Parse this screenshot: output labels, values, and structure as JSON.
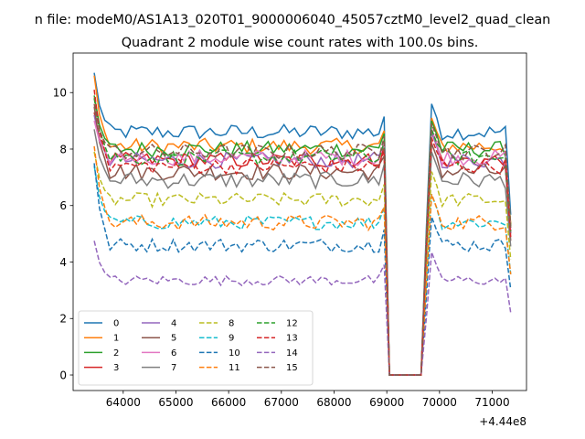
{
  "chart_data": {
    "type": "line",
    "suptitle": "n file: modeM0/AS1A13_020T01_9000006040_45057cztM0_level2_quad_clean",
    "title": "Quadrant 2 module wise count rates with 100.0s bins.",
    "xlabel": "",
    "ylabel": "",
    "offset_text": "+4.44e8",
    "xlim": [
      63050,
      71650
    ],
    "ylim": [
      -0.55,
      11.4
    ],
    "xticks": [
      64000,
      65000,
      66000,
      67000,
      68000,
      69000,
      70000,
      71000
    ],
    "yticks": [
      0,
      2,
      4,
      6,
      8,
      10
    ],
    "legend": {
      "position": "lower-left",
      "columns": 4
    },
    "x": {
      "start": 63450,
      "step": 100,
      "count": 80
    },
    "series": [
      {
        "name": "0",
        "color": "#1f77b4",
        "dash": "solid",
        "base": 8.6,
        "jitter": 0.28,
        "start": 10.7
      },
      {
        "name": "1",
        "color": "#ff7f0e",
        "dash": "solid",
        "base": 8.1,
        "jitter": 0.28,
        "start": 10.6
      },
      {
        "name": "2",
        "color": "#2ca02c",
        "dash": "solid",
        "base": 8.0,
        "jitter": 0.28,
        "start": 9.9
      },
      {
        "name": "3",
        "color": "#d62728",
        "dash": "solid",
        "base": 7.6,
        "jitter": 0.28,
        "start": 9.3
      },
      {
        "name": "4",
        "color": "#9467bd",
        "dash": "solid",
        "base": 7.6,
        "jitter": 0.28,
        "start": 9.2
      },
      {
        "name": "5",
        "color": "#8c564b",
        "dash": "solid",
        "base": 7.2,
        "jitter": 0.3,
        "start": 9.5
      },
      {
        "name": "6",
        "color": "#e377c2",
        "dash": "solid",
        "base": 7.7,
        "jitter": 0.28,
        "start": 9.0
      },
      {
        "name": "7",
        "color": "#7f7f7f",
        "dash": "solid",
        "base": 6.9,
        "jitter": 0.3,
        "start": 8.7
      },
      {
        "name": "8",
        "color": "#bcbd22",
        "dash": "dashed",
        "base": 6.2,
        "jitter": 0.25,
        "start": 7.9
      },
      {
        "name": "9",
        "color": "#17becf",
        "dash": "dashed",
        "base": 5.4,
        "jitter": 0.25,
        "start": 7.4
      },
      {
        "name": "10",
        "color": "#1f77b4",
        "dash": "dashed",
        "base": 4.6,
        "jitter": 0.25,
        "start": 7.5
      },
      {
        "name": "11",
        "color": "#ff7f0e",
        "dash": "dashed",
        "base": 5.4,
        "jitter": 0.28,
        "start": 8.1
      },
      {
        "name": "12",
        "color": "#2ca02c",
        "dash": "dashed",
        "base": 7.7,
        "jitter": 0.28,
        "start": 9.8
      },
      {
        "name": "13",
        "color": "#d62728",
        "dash": "dashed",
        "base": 7.4,
        "jitter": 0.28,
        "start": 10.1
      },
      {
        "name": "14",
        "color": "#9467bd",
        "dash": "dashed",
        "base": 3.35,
        "jitter": 0.18,
        "start": 4.75
      },
      {
        "name": "15",
        "color": "#8c564b",
        "dash": "dashed",
        "base": 7.9,
        "jitter": 0.28,
        "start": 9.6
      }
    ],
    "dip": {
      "x_start": 69050,
      "x_end": 69650,
      "value": 0.0
    }
  }
}
